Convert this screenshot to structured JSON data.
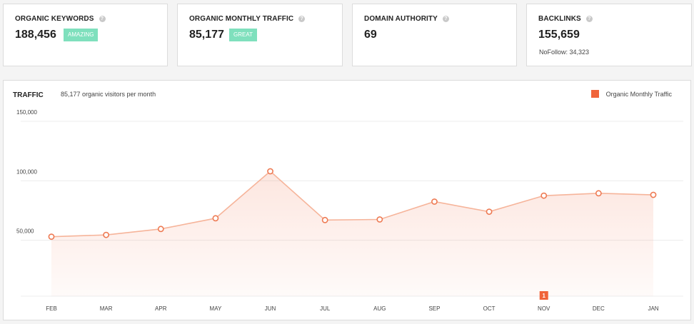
{
  "metrics": {
    "organic_keywords": {
      "title": "ORGANIC KEYWORDS",
      "value": "188,456",
      "badge": "AMAZING"
    },
    "organic_traffic": {
      "title": "ORGANIC MONTHLY TRAFFIC",
      "value": "85,177",
      "badge": "GREAT"
    },
    "domain_authority": {
      "title": "DOMAIN AUTHORITY",
      "value": "69"
    },
    "backlinks": {
      "title": "BACKLINKS",
      "value": "155,659",
      "nofollow": "NoFollow: 34,323"
    }
  },
  "help_icon_glyph": "?",
  "traffic": {
    "title": "TRAFFIC",
    "subtitle": "85,177 organic visitors per month",
    "legend_label": "Organic Monthly Traffic"
  },
  "colors": {
    "accent": "#f0643a",
    "line": "#f6b49a",
    "point_stroke": "#ee7a53",
    "badge": "#7fe0bd"
  },
  "chart_data": {
    "type": "area",
    "title": "TRAFFIC",
    "series": [
      {
        "name": "Organic Monthly Traffic",
        "values": [
          50000,
          51500,
          56500,
          65500,
          105000,
          64000,
          64500,
          79500,
          71000,
          84500,
          86500,
          85177
        ]
      }
    ],
    "categories": [
      "FEB",
      "MAR",
      "APR",
      "MAY",
      "JUN",
      "JUL",
      "AUG",
      "SEP",
      "OCT",
      "NOV",
      "DEC",
      "JAN"
    ],
    "y_ticks": [
      {
        "value": 50000,
        "label": "50,000"
      },
      {
        "value": 100000,
        "label": "100,000"
      },
      {
        "value": 150000,
        "label": "150,000"
      }
    ],
    "ylim": [
      0,
      150000
    ],
    "annotations": [
      {
        "category": "NOV",
        "label": "1"
      }
    ]
  }
}
